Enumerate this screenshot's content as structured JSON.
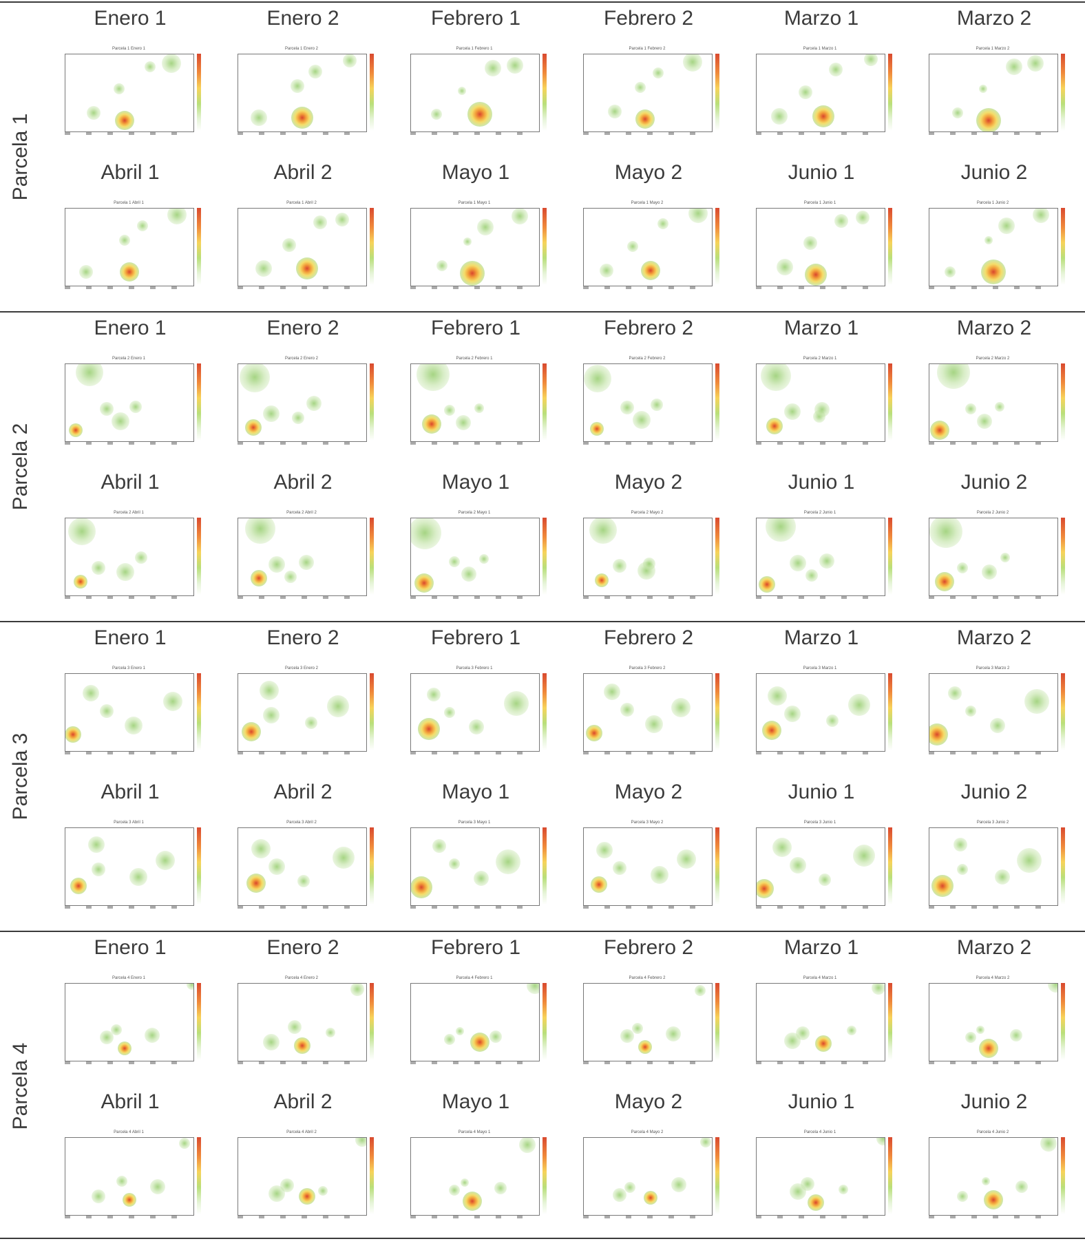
{
  "parcelas": [
    {
      "label": "Parcela 1",
      "months": [
        "Enero 1",
        "Enero 2",
        "Febrero 1",
        "Febrero 2",
        "Marzo 1",
        "Marzo 2",
        "Abril 1",
        "Abril 2",
        "Mayo 1",
        "Mayo 2",
        "Junio 1",
        "Junio 2"
      ],
      "map_titles": [
        "Parcela 1 Enero 1",
        "Parcela 1 Enero 2",
        "Parcela 1 Febrero 1",
        "Parcela 1 Febrero 2",
        "Parcela 1 Marzo 1",
        "Parcela 1 Marzo 2",
        "Parcela 1 Abril 1",
        "Parcela 1 Abril 2",
        "Parcela 1 Mayo 1",
        "Parcela 1 Mayo 2",
        "Parcela 1 Junio 1",
        "Parcela 1 Junio 2"
      ]
    },
    {
      "label": "Parcela 2",
      "months": [
        "Enero 1",
        "Enero 2",
        "Febrero 1",
        "Febrero 2",
        "Marzo 1",
        "Marzo 2",
        "Abril 1",
        "Abril 2",
        "Mayo 1",
        "Mayo 2",
        "Junio 1",
        "Junio 2"
      ],
      "map_titles": [
        "Parcela 2 Enero 1",
        "Parcela 2 Enero 2",
        "Parcela 2 Febrero 1",
        "Parcela 2 Febrero 2",
        "Parcela 2 Marzo 1",
        "Parcela 2 Marzo 2",
        "Parcela 2 Abril 1",
        "Parcela 2 Abril 2",
        "Parcela 2 Mayo 1",
        "Parcela 2 Mayo 2",
        "Parcela 2 Junio 1",
        "Parcela 2 Junio 2"
      ]
    },
    {
      "label": "Parcela 3",
      "months": [
        "Enero 1",
        "Enero 2",
        "Febrero 1",
        "Febrero 2",
        "Marzo 1",
        "Marzo 2",
        "Abril 1",
        "Abril 2",
        "Mayo 1",
        "Mayo 2",
        "Junio 1",
        "Junio 2"
      ],
      "map_titles": [
        "Parcela 3 Enero 1",
        "Parcela 3 Enero 2",
        "Parcela 3 Febrero 1",
        "Parcela 3 Febrero 2",
        "Parcela 3 Marzo 1",
        "Parcela 3 Marzo 2",
        "Parcela 3 Abril 1",
        "Parcela 3 Abril 2",
        "Parcela 3 Mayo 1",
        "Parcela 3 Mayo 2",
        "Parcela 3 Junio 1",
        "Parcela 3 Junio 2"
      ]
    },
    {
      "label": "Parcela 4",
      "months": [
        "Enero 1",
        "Enero 2",
        "Febrero 1",
        "Febrero 2",
        "Marzo 1",
        "Marzo 2",
        "Abril 1",
        "Abril 2",
        "Mayo 1",
        "Mayo 2",
        "Junio 1",
        "Junio 2"
      ],
      "map_titles": [
        "Parcela 4 Enero 1",
        "Parcela 4 Enero 2",
        "Parcela 4 Febrero 1",
        "Parcela 4 Febrero 2",
        "Parcela 4 Marzo 1",
        "Parcela 4 Marzo 2",
        "Parcela 4 Abril 1",
        "Parcela 4 Abril 2",
        "Parcela 4 Mayo 1",
        "Parcela 4 Mayo 2",
        "Parcela 4 Junio 1",
        "Parcela 4 Junio 2"
      ]
    }
  ]
}
